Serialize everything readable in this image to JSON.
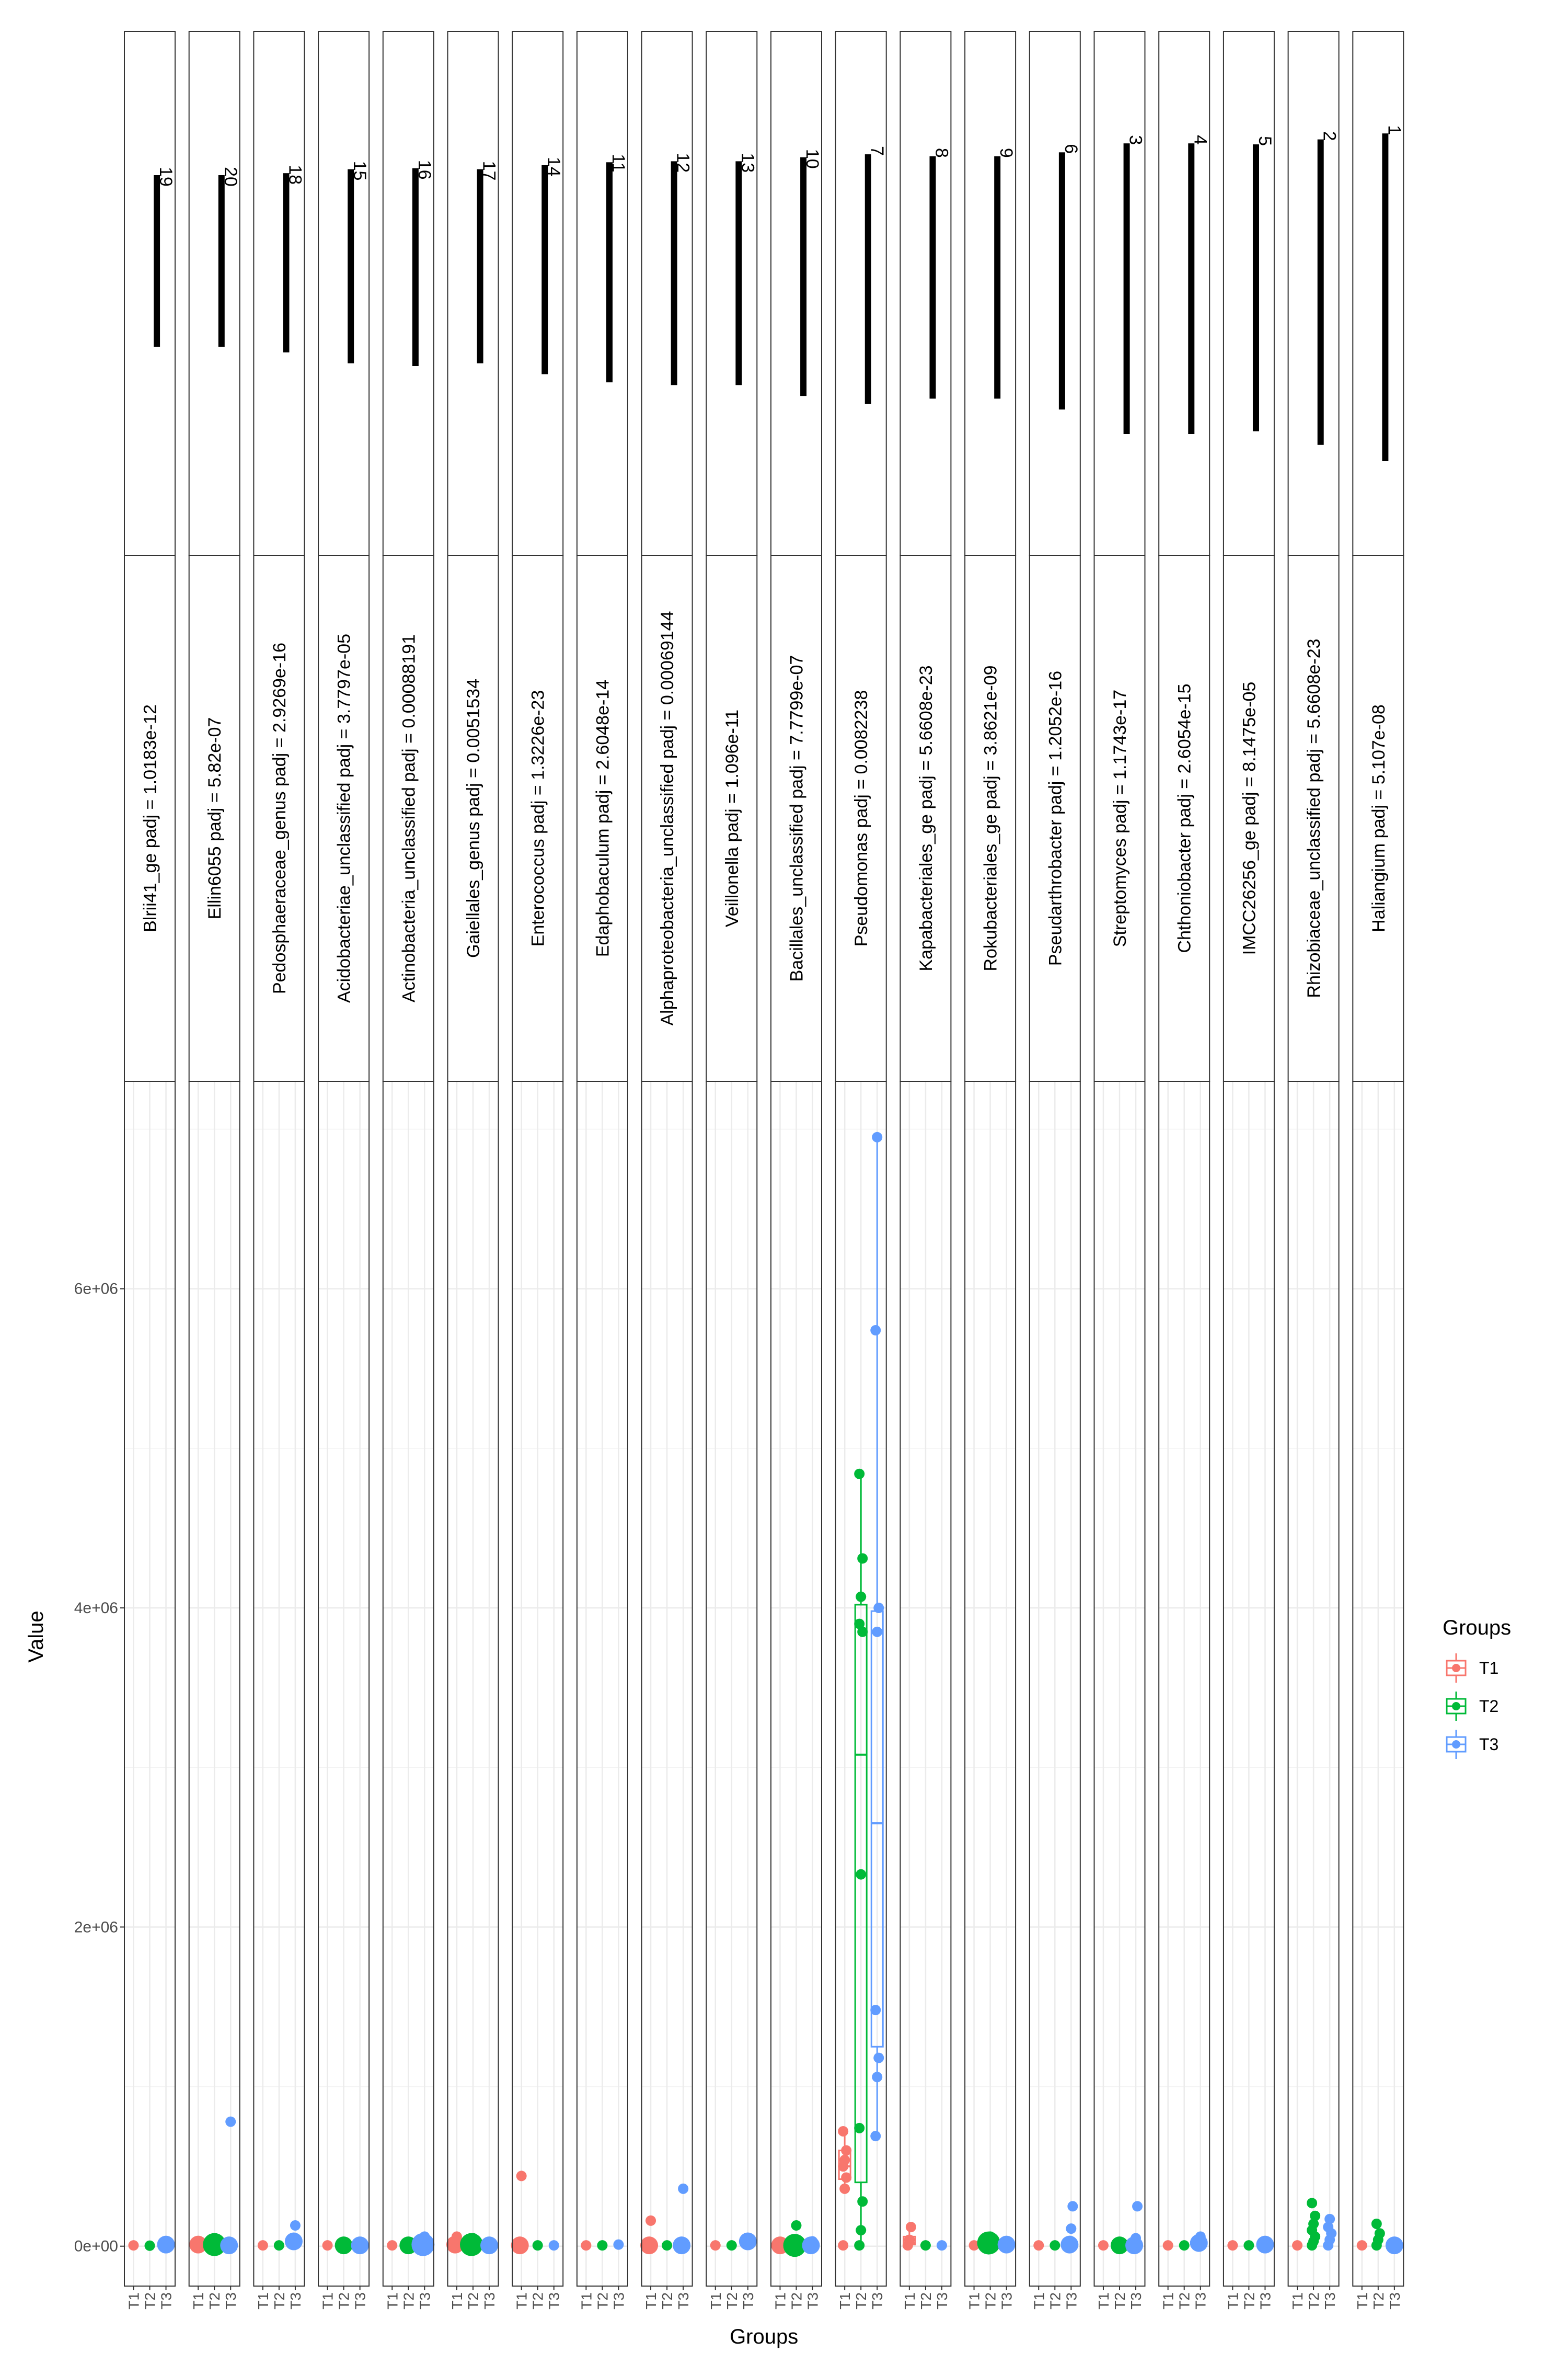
{
  "chart_data": {
    "type": "box+jitter (faceted, rotated)",
    "ylabel": "Value",
    "xlabel": "Groups",
    "y_ticks": [
      "0e+00",
      "2e+06",
      "4e+06",
      "6e+06"
    ],
    "y_tick_values": [
      0,
      2000000,
      4000000,
      6000000
    ],
    "ylim": [
      -250000,
      7300000
    ],
    "groups": [
      "T1",
      "T2",
      "T3"
    ],
    "colors": {
      "T1": "#F8766D",
      "T2": "#00BA38",
      "T3": "#619CFF"
    },
    "legend": {
      "title": "Groups",
      "position": "right"
    },
    "grid": true,
    "facets": [
      {
        "label": "Blrii41_ge padj = 1.0183e-12",
        "rank": "19",
        "rank_bar": 0.42,
        "points": {
          "T1": [
            5000
          ],
          "T2": [
            3000
          ],
          "T3": [
            10000
          ]
        },
        "sizes": {
          "T1": 1,
          "T2": 1,
          "T3": 2
        }
      },
      {
        "label": "Ellin6055 padj = 5.82e-07",
        "rank": "20",
        "rank_bar": 0.42,
        "points": {
          "T1": [
            10000
          ],
          "T2": [
            10000
          ],
          "T3": [
            5000,
            780000
          ]
        },
        "sizes": {
          "T1": 2,
          "T2": 3,
          "T3": 2
        }
      },
      {
        "label": "Pedosphaeraceae_genus padj = 2.9269e-16",
        "rank": "18",
        "rank_bar": 0.44,
        "points": {
          "T1": [
            5000
          ],
          "T2": [
            5000
          ],
          "T3": [
            30000,
            130000
          ]
        },
        "sizes": {
          "T1": 1,
          "T2": 1,
          "T3": 2
        }
      },
      {
        "label": "Acidobacteriae_unclassified padj = 3.7797e-05",
        "rank": "15",
        "rank_bar": 0.48,
        "points": {
          "T1": [
            5000
          ],
          "T2": [
            5000
          ],
          "T3": [
            5000
          ]
        },
        "sizes": {
          "T1": 1,
          "T2": 2,
          "T3": 2
        }
      },
      {
        "label": "Actinobacteria_unclassified padj = 0.00088191",
        "rank": "16",
        "rank_bar": 0.49,
        "points": {
          "T1": [
            5000
          ],
          "T2": [
            5000
          ],
          "T3": [
            10000,
            60000
          ]
        },
        "sizes": {
          "T1": 1,
          "T2": 2,
          "T3": 3
        }
      },
      {
        "label": "Gaiellales_genus padj = 0.0051534",
        "rank": "17",
        "rank_bar": 0.48,
        "points": {
          "T1": [
            10000,
            60000
          ],
          "T2": [
            10000,
            50000
          ],
          "T3": [
            5000
          ]
        },
        "sizes": {
          "T1": 2,
          "T2": 3,
          "T3": 2
        }
      },
      {
        "label": "Enterococcus padj = 1.3226e-23",
        "rank": "14",
        "rank_bar": 0.52,
        "points": {
          "T1": [
            5000,
            440000
          ],
          "T2": [
            5000
          ],
          "T3": [
            5000
          ]
        },
        "sizes": {
          "T1": 2,
          "T2": 1,
          "T3": 1
        }
      },
      {
        "label": "Edaphobaculum padj = 2.6048e-14",
        "rank": "11",
        "rank_bar": 0.55,
        "points": {
          "T1": [
            5000
          ],
          "T2": [
            5000
          ],
          "T3": [
            10000
          ]
        },
        "sizes": {
          "T1": 1,
          "T2": 1,
          "T3": 1
        }
      },
      {
        "label": "Alphaproteobacteria_unclassified padj = 0.00069144",
        "rank": "12",
        "rank_bar": 0.56,
        "points": {
          "T1": [
            5000,
            160000
          ],
          "T2": [
            5000
          ],
          "T3": [
            5000,
            360000
          ]
        },
        "sizes": {
          "T1": 2,
          "T2": 1,
          "T3": 2
        }
      },
      {
        "label": "Veillonella padj = 1.096e-11",
        "rank": "13",
        "rank_bar": 0.56,
        "points": {
          "T1": [
            5000
          ],
          "T2": [
            5000
          ],
          "T3": [
            30000
          ]
        },
        "sizes": {
          "T1": 1,
          "T2": 1,
          "T3": 2
        }
      },
      {
        "label": "Bacillales_unclassified padj = 7.7799e-07",
        "rank": "10",
        "rank_bar": 0.6,
        "points": {
          "T1": [
            5000
          ],
          "T2": [
            5000,
            130000
          ],
          "T3": [
            5000,
            30000
          ]
        },
        "sizes": {
          "T1": 2,
          "T2": 3,
          "T3": 2
        }
      },
      {
        "label": "Pseudomonas padj = 0.0082238",
        "rank": "7",
        "rank_bar": 0.63,
        "points": {
          "T1": [
            5000,
            360000,
            430000,
            500000,
            540000,
            600000,
            720000
          ],
          "T2": [
            5000,
            100000,
            280000,
            740000,
            2330000,
            3850000,
            3900000,
            4070000,
            4310000,
            4840000
          ],
          "T3": [
            690000,
            1060000,
            1180000,
            1480000,
            3850000,
            4000000,
            5740000,
            6950000
          ]
        },
        "box": {
          "T1": [
            360000,
            420000,
            500000,
            600000,
            720000
          ],
          "T2": [
            5000,
            400000,
            3080000,
            4020000,
            4840000
          ],
          "T3": [
            690000,
            1250000,
            2650000,
            3980000,
            6950000
          ]
        },
        "sizes": {
          "T1": 1,
          "T2": 1,
          "T3": 1
        }
      },
      {
        "label": "Kapabacteriales_ge padj = 5.6608e-23",
        "rank": "8",
        "rank_bar": 0.61,
        "points": {
          "T1": [
            5000,
            40000,
            120000
          ],
          "T2": [
            5000
          ],
          "T3": [
            5000
          ]
        },
        "box": {
          "T1": [
            5000,
            10000,
            20000,
            60000,
            120000
          ]
        },
        "sizes": {
          "T1": 1,
          "T2": 1,
          "T3": 1
        }
      },
      {
        "label": "Rokubacteriales_ge padj = 3.8621e-09",
        "rank": "9",
        "rank_bar": 0.61,
        "points": {
          "T1": [
            5000
          ],
          "T2": [
            20000,
            60000
          ],
          "T3": [
            10000
          ]
        },
        "sizes": {
          "T1": 1,
          "T2": 3,
          "T3": 2
        }
      },
      {
        "label": "Pseudarthrobacter padj = 1.2052e-16",
        "rank": "6",
        "rank_bar": 0.65,
        "points": {
          "T1": [
            5000
          ],
          "T2": [
            5000
          ],
          "T3": [
            10000,
            110000,
            250000
          ]
        },
        "sizes": {
          "T1": 1,
          "T2": 1,
          "T3": 2
        }
      },
      {
        "label": "Streptomyces padj = 1.1743e-17",
        "rank": "3",
        "rank_bar": 0.74,
        "points": {
          "T1": [
            5000
          ],
          "T2": [
            5000
          ],
          "T3": [
            5000,
            50000,
            250000
          ]
        },
        "sizes": {
          "T1": 1,
          "T2": 2,
          "T3": 2
        }
      },
      {
        "label": "Chthoniobacter padj = 2.6054e-15",
        "rank": "4",
        "rank_bar": 0.74,
        "points": {
          "T1": [
            5000
          ],
          "T2": [
            5000
          ],
          "T3": [
            20000,
            60000
          ]
        },
        "sizes": {
          "T1": 1,
          "T2": 1,
          "T3": 2
        }
      },
      {
        "label": "IMCC26256_ge padj = 8.1475e-05",
        "rank": "5",
        "rank_bar": 0.73,
        "points": {
          "T1": [
            5000
          ],
          "T2": [
            5000
          ],
          "T3": [
            10000
          ]
        },
        "sizes": {
          "T1": 1,
          "T2": 1,
          "T3": 2
        }
      },
      {
        "label": "Rhizobiaceae_unclassified padj = 5.6608e-23",
        "rank": "2",
        "rank_bar": 0.78,
        "points": {
          "T1": [
            5000
          ],
          "T2": [
            5000,
            30000,
            60000,
            100000,
            140000,
            190000,
            270000
          ],
          "T3": [
            5000,
            40000,
            80000,
            120000,
            170000
          ]
        },
        "sizes": {
          "T1": 1,
          "T2": 1,
          "T3": 1
        }
      },
      {
        "label": "Haliangium padj = 5.107e-08",
        "rank": "1",
        "rank_bar": 0.84,
        "points": {
          "T1": [
            5000
          ],
          "T2": [
            5000,
            40000,
            80000,
            140000
          ],
          "T3": [
            5000
          ]
        },
        "sizes": {
          "T1": 1,
          "T2": 1,
          "T3": 2
        }
      }
    ]
  }
}
